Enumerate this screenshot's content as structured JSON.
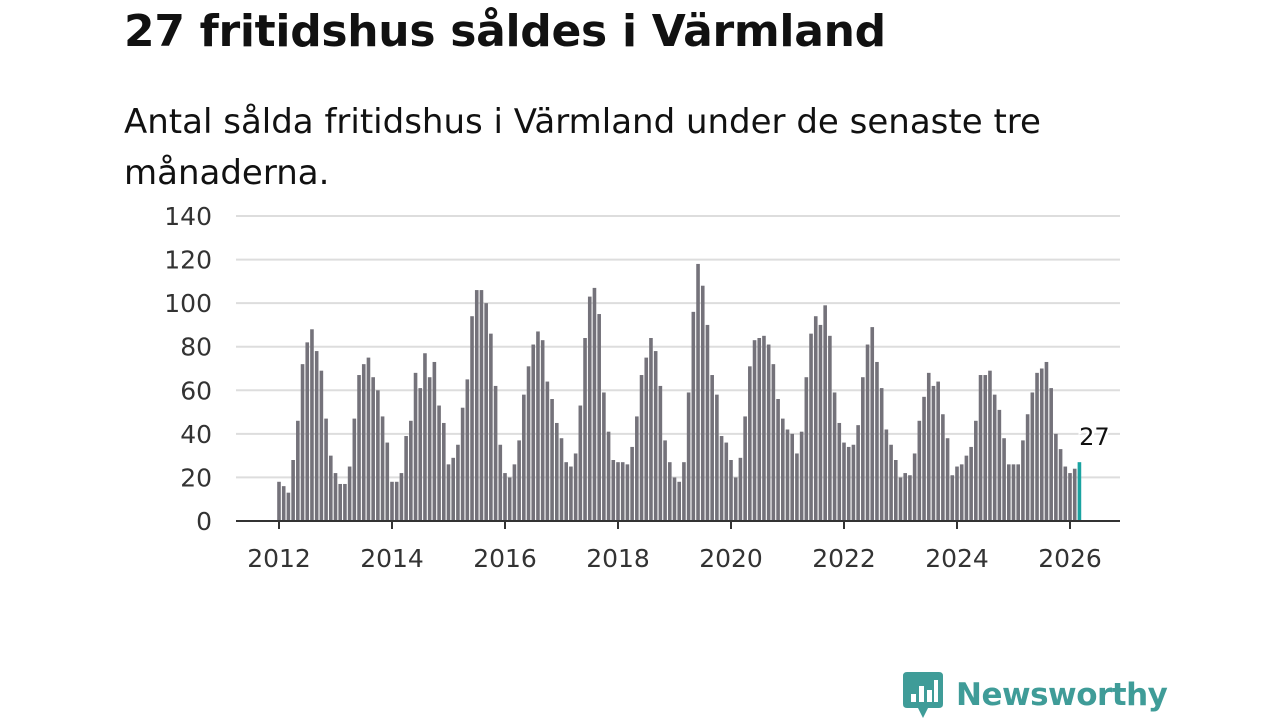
{
  "header": {
    "title": "27 fritidshus såldes i Värmland",
    "subtitle": "Antal sålda fritidshus i Värmland under de senaste tre månaderna."
  },
  "brand": {
    "name": "Newsworthy",
    "color": "#3f9c98",
    "icon": "newsworthy-chart-bubble-icon"
  },
  "colors": {
    "bar": "#74727a",
    "highlight": "#1aa3a1",
    "grid": "#dddddd",
    "axis": "#333333",
    "text": "#333333"
  },
  "chart_data": {
    "type": "bar",
    "title": "27 fritidshus såldes i Värmland",
    "subtitle": "Antal sålda fritidshus i Värmland under de senaste tre månaderna.",
    "xlabel": "",
    "ylabel": "",
    "start": "2012-01",
    "frequency": "monthly",
    "ylim": [
      0,
      140
    ],
    "yticks": [
      0,
      20,
      40,
      60,
      80,
      100,
      120,
      140
    ],
    "xticks": [
      "2012",
      "2014",
      "2016",
      "2018",
      "2020",
      "2022",
      "2024",
      "2026"
    ],
    "grid": true,
    "legend": "none",
    "highlight": {
      "label": "27",
      "value": 27,
      "index": 170
    },
    "values": [
      18,
      16,
      13,
      28,
      46,
      72,
      82,
      88,
      78,
      69,
      47,
      30,
      22,
      17,
      17,
      25,
      47,
      67,
      72,
      75,
      66,
      60,
      48,
      36,
      18,
      18,
      22,
      39,
      46,
      68,
      61,
      77,
      66,
      73,
      53,
      45,
      26,
      29,
      35,
      52,
      65,
      94,
      106,
      106,
      100,
      86,
      62,
      35,
      22,
      20,
      26,
      37,
      58,
      71,
      81,
      87,
      83,
      64,
      56,
      45,
      38,
      27,
      25,
      31,
      53,
      84,
      103,
      107,
      95,
      59,
      41,
      28,
      27,
      27,
      26,
      34,
      48,
      67,
      75,
      84,
      78,
      62,
      37,
      27,
      20,
      18,
      27,
      59,
      96,
      118,
      108,
      90,
      67,
      58,
      39,
      36,
      28,
      20,
      29,
      48,
      71,
      83,
      84,
      85,
      81,
      72,
      56,
      47,
      42,
      40,
      31,
      41,
      66,
      86,
      94,
      90,
      99,
      85,
      59,
      45,
      36,
      34,
      35,
      44,
      66,
      81,
      89,
      73,
      61,
      42,
      35,
      28,
      20,
      22,
      21,
      31,
      46,
      57,
      68,
      62,
      64,
      49,
      38,
      21,
      25,
      26,
      30,
      34,
      46,
      67,
      67,
      69,
      58,
      51,
      38,
      26,
      26,
      26,
      37,
      49,
      59,
      68,
      70,
      73,
      61,
      40,
      33,
      25,
      22,
      24,
      27
    ]
  }
}
